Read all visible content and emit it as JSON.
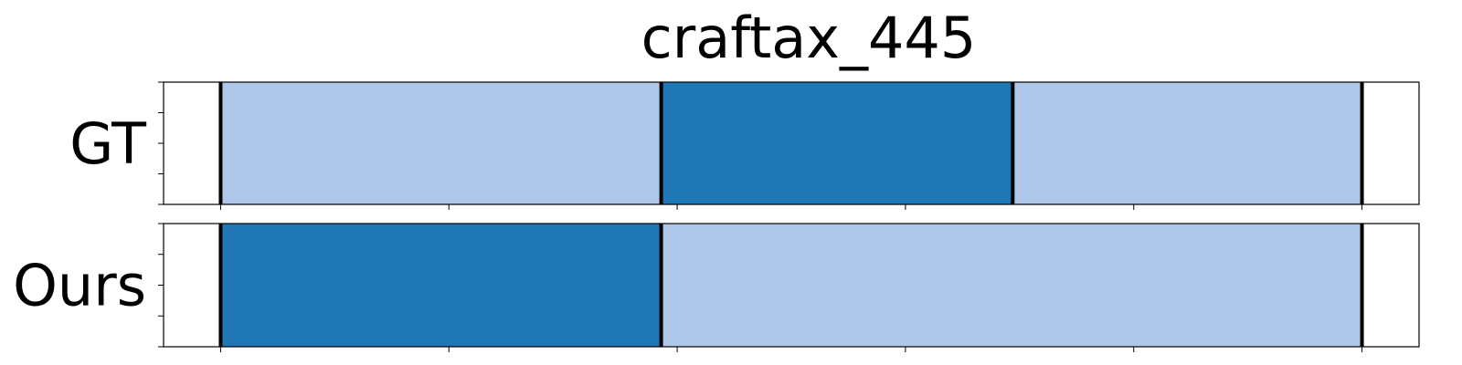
{
  "chart_data": {
    "type": "segment-timeline",
    "title": "craftax_445",
    "x_range": [
      -25,
      525
    ],
    "x_ticks": [
      0,
      100,
      200,
      300,
      400,
      500
    ],
    "show_x_tick_labels": false,
    "show_y_tick_labels": false,
    "colors": {
      "light": "#aec7e8",
      "dark": "#1f77b4",
      "boundary": "#000000"
    },
    "rows": [
      {
        "label": "GT",
        "segments": [
          {
            "start": 0,
            "end": 193,
            "color": "light"
          },
          {
            "start": 193,
            "end": 347,
            "color": "dark"
          },
          {
            "start": 347,
            "end": 500,
            "color": "light"
          }
        ],
        "boundaries": [
          0,
          193,
          347,
          500
        ]
      },
      {
        "label": "Ours",
        "segments": [
          {
            "start": 0,
            "end": 193,
            "color": "dark"
          },
          {
            "start": 193,
            "end": 500,
            "color": "light"
          }
        ],
        "boundaries": [
          0,
          193,
          500
        ]
      }
    ]
  }
}
